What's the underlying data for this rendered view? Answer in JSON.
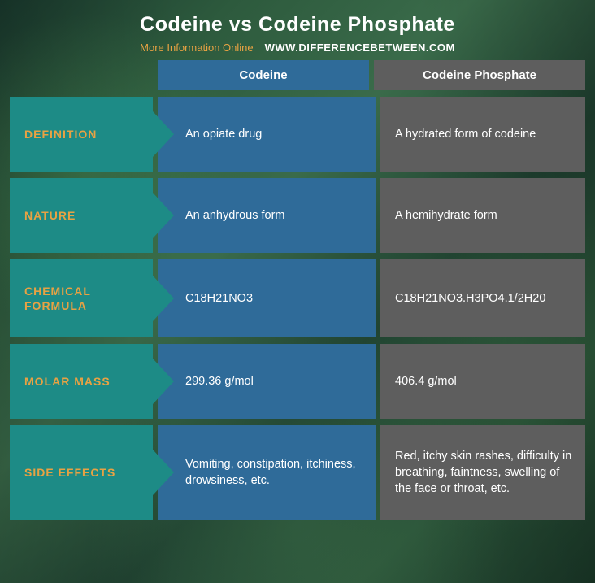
{
  "header": {
    "title": "Codeine vs Codeine Phosphate",
    "subtitle_left": "More Information  Online",
    "subtitle_right": "WWW.DIFFERENCEBETWEEN.COM"
  },
  "columns": {
    "col1": "Codeine",
    "col2": "Codeine Phosphate"
  },
  "rows": [
    {
      "label": "DEFINITION",
      "col1": "An opiate drug",
      "col2": "A hydrated form of codeine"
    },
    {
      "label": "NATURE",
      "col1": "An anhydrous form",
      "col2": "A hemihydrate form"
    },
    {
      "label": "CHEMICAL FORMULA",
      "col1": "C18H21NO3",
      "col2": "C18H21NO3.H3PO4.1/2H20"
    },
    {
      "label": "MOLAR MASS",
      "col1": "299.36 g/mol",
      "col2": "406.4 g/mol"
    },
    {
      "label": "SIDE EFFECTS",
      "col1": "Vomiting, constipation, itchiness, drowsiness, etc.",
      "col2": "Red, itchy skin rashes, difficulty in breathing, faintness, swelling of the face or throat, etc."
    }
  ],
  "colors": {
    "label_bg": "#1d8b86",
    "label_text": "#e8a243",
    "col1_bg": "#2f6b99",
    "col2_bg": "#5e5e5e",
    "text": "#ffffff"
  }
}
